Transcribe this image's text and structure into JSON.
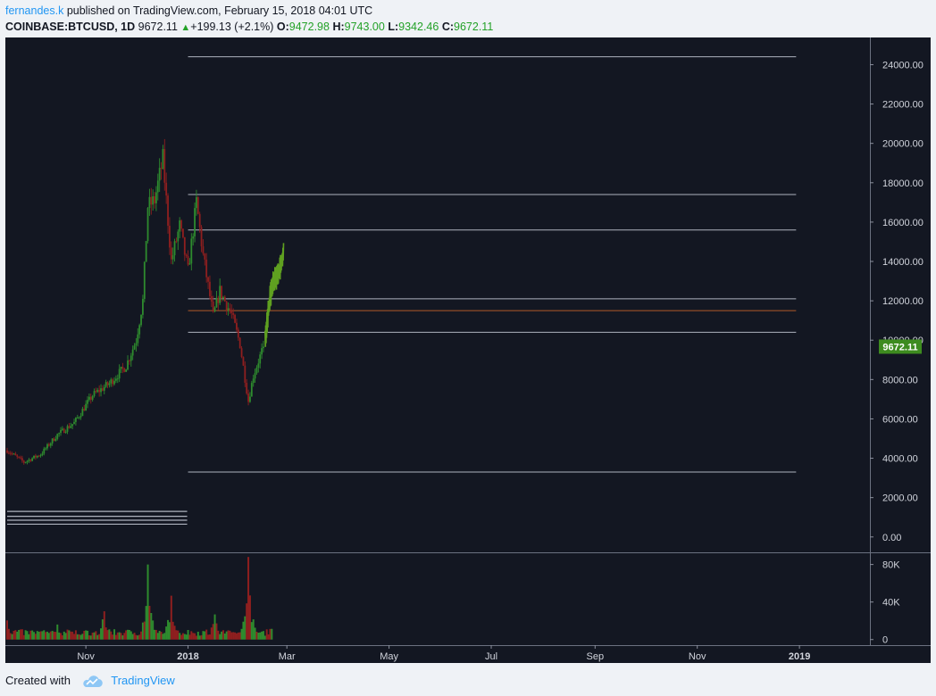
{
  "header": {
    "author": "fernandes.k",
    "published_text": "published on TradingView.com, February 15, 2018 04:01 UTC",
    "symbol": "COINBASE:BTCUSD, 1D",
    "last_price": "9672.11",
    "change": "+199.13 (+2.1%)",
    "open_label": "O:",
    "open": "9472.98",
    "high_label": "H:",
    "high": "9743.00",
    "low_label": "L:",
    "low": "9342.46",
    "close_label": "C:",
    "close": "9672.11"
  },
  "footer": {
    "created_with": "Created with",
    "brand": "TradingView"
  },
  "colors": {
    "background": "#131722",
    "up": "#2e8b2e",
    "down": "#8f1f1f",
    "projection": "#5fa020",
    "level_line": "#aeb3be",
    "price_line": "#b05a28",
    "label_green": "#3d8b1f",
    "axis_text": "#d1d4dc"
  },
  "chart_data": [
    {
      "type": "candlestick",
      "symbol": "COINBASE:BTCUSD",
      "interval": "1D",
      "y_ticks": [
        24000,
        22000,
        20000,
        18000,
        16000,
        14000,
        12000,
        10000,
        8000,
        6000,
        4000,
        2000,
        0
      ],
      "y_tick_labels": [
        "24000.00",
        "22000.00",
        "20000.00",
        "18000.00",
        "16000.00",
        "14000.00",
        "12000.00",
        "10000.00",
        "8000.00",
        "6000.00",
        "4000.00",
        "2000.00",
        "0.00"
      ],
      "ylim": [
        -600,
        25200
      ],
      "x_tick_labels": [
        "Nov",
        "2018",
        "Mar",
        "May",
        "Jul",
        "Sep",
        "Nov",
        "2019"
      ],
      "x_tick_dates": [
        "2017-11-01",
        "2018-01-01",
        "2018-03-01",
        "2018-05-01",
        "2018-07-01",
        "2018-09-01",
        "2018-11-01",
        "2019-01-01"
      ],
      "current_price_label": "9672.11",
      "current_price": 9672.11,
      "price_path": {
        "dates": [
          "2017-09-15",
          "2017-09-25",
          "2017-10-05",
          "2017-10-15",
          "2017-10-25",
          "2017-11-05",
          "2017-11-15",
          "2017-11-25",
          "2017-12-01",
          "2017-12-05",
          "2017-12-08",
          "2017-12-12",
          "2017-12-17",
          "2017-12-22",
          "2017-12-27",
          "2018-01-01",
          "2018-01-06",
          "2018-01-10",
          "2018-01-16",
          "2018-01-20",
          "2018-01-27",
          "2018-02-01",
          "2018-02-06",
          "2018-02-09",
          "2018-02-15"
        ],
        "prices": [
          4400,
          3800,
          4200,
          5200,
          5800,
          7200,
          7800,
          8700,
          10000,
          12000,
          16800,
          17100,
          19200,
          14000,
          15800,
          13500,
          17000,
          14300,
          11200,
          12500,
          11300,
          9800,
          6900,
          8200,
          9672
        ]
      },
      "historical_levels": [
        1300,
        1050,
        850,
        650
      ],
      "horizontal_levels": [
        24400,
        17400,
        15600,
        12100,
        10400,
        3300
      ],
      "current_level": 11500,
      "projection": {
        "dates": [
          "2018-02-16",
          "2018-02-19",
          "2018-02-21",
          "2018-02-24",
          "2018-02-27"
        ],
        "prices": [
          10100,
          12200,
          13000,
          13400,
          14400
        ]
      }
    },
    {
      "type": "bar",
      "name": "Volume",
      "y_ticks": [
        0,
        40000,
        80000
      ],
      "y_tick_labels": [
        "0",
        "40K",
        "80K"
      ],
      "ylim": [
        -5000,
        92000
      ],
      "date_range": [
        "2017-09-15",
        "2018-02-20"
      ],
      "peaks": {
        "dates": [
          "2017-09-15",
          "2017-10-15",
          "2017-11-12",
          "2017-12-08",
          "2017-12-22",
          "2018-01-17",
          "2018-02-06",
          "2018-02-20"
        ],
        "volumes": [
          28000,
          18000,
          35000,
          80000,
          55000,
          32000,
          88000,
          22000
        ]
      }
    }
  ]
}
